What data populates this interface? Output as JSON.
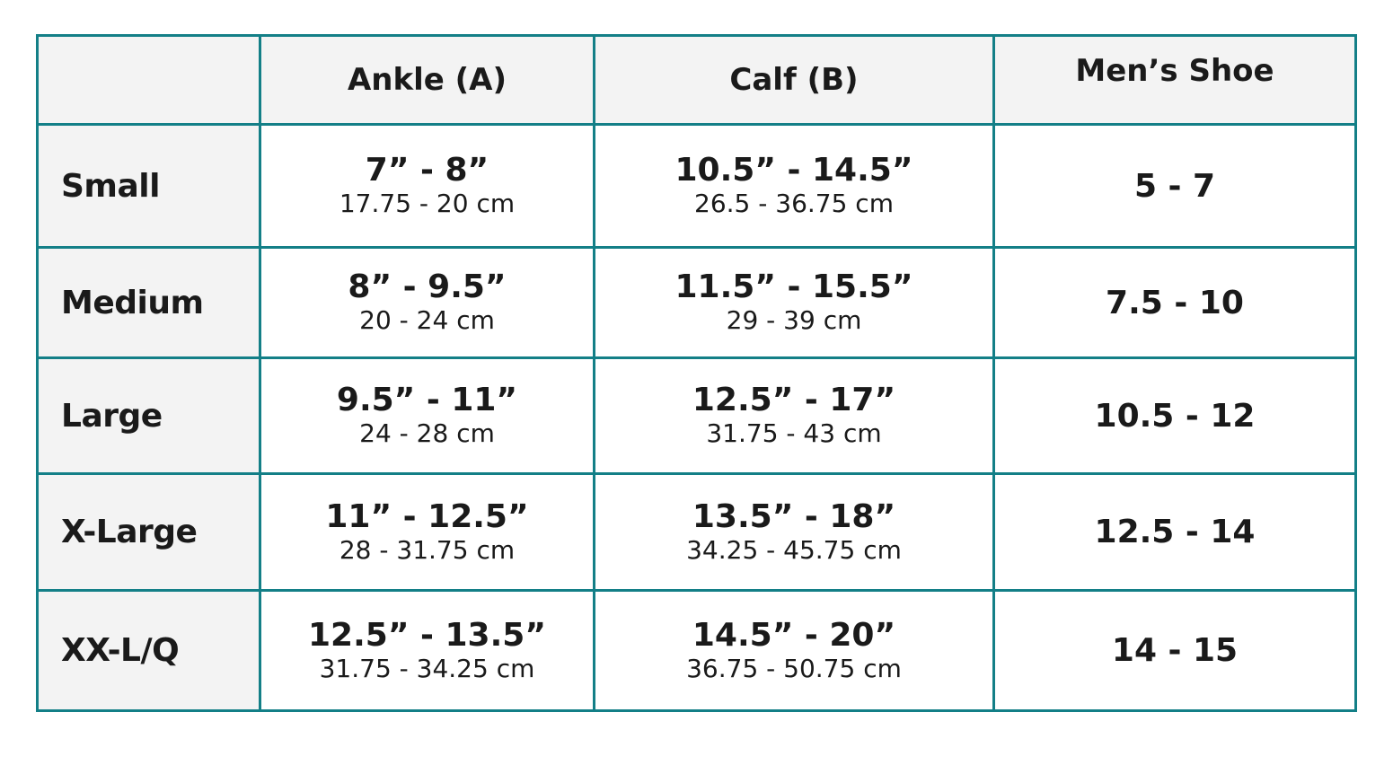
{
  "colors": {
    "border": "#137f87",
    "header_bg": "#f3f3f3",
    "label_bg": "#f3f3f3"
  },
  "table": {
    "headers": [
      "",
      "Ankle (A)",
      "Calf (B)",
      "Men’s Shoe"
    ],
    "rows": [
      {
        "size": "Small",
        "ankle_in": "7” - 8”",
        "ankle_cm": "17.75 - 20 cm",
        "calf_in": "10.5” - 14.5”",
        "calf_cm": "26.5 - 36.75 cm",
        "shoe": "5 - 7"
      },
      {
        "size": "Medium",
        "ankle_in": "8” - 9.5”",
        "ankle_cm": "20 - 24 cm",
        "calf_in": "11.5” - 15.5”",
        "calf_cm": "29 - 39 cm",
        "shoe": "7.5 - 10"
      },
      {
        "size": "Large",
        "ankle_in": "9.5” - 11”",
        "ankle_cm": "24 - 28 cm",
        "calf_in": "12.5” - 17”",
        "calf_cm": "31.75 - 43 cm",
        "shoe": "10.5 - 12"
      },
      {
        "size": "X-Large",
        "ankle_in": "11” - 12.5”",
        "ankle_cm": "28 - 31.75 cm",
        "calf_in": "13.5” - 18”",
        "calf_cm": "34.25 - 45.75 cm",
        "shoe": "12.5 - 14"
      },
      {
        "size": "XX-L/Q",
        "ankle_in": "12.5” - 13.5”",
        "ankle_cm": "31.75 - 34.25 cm",
        "calf_in": "14.5” - 20”",
        "calf_cm": "36.75 - 50.75 cm",
        "shoe": "14 - 15"
      }
    ]
  }
}
